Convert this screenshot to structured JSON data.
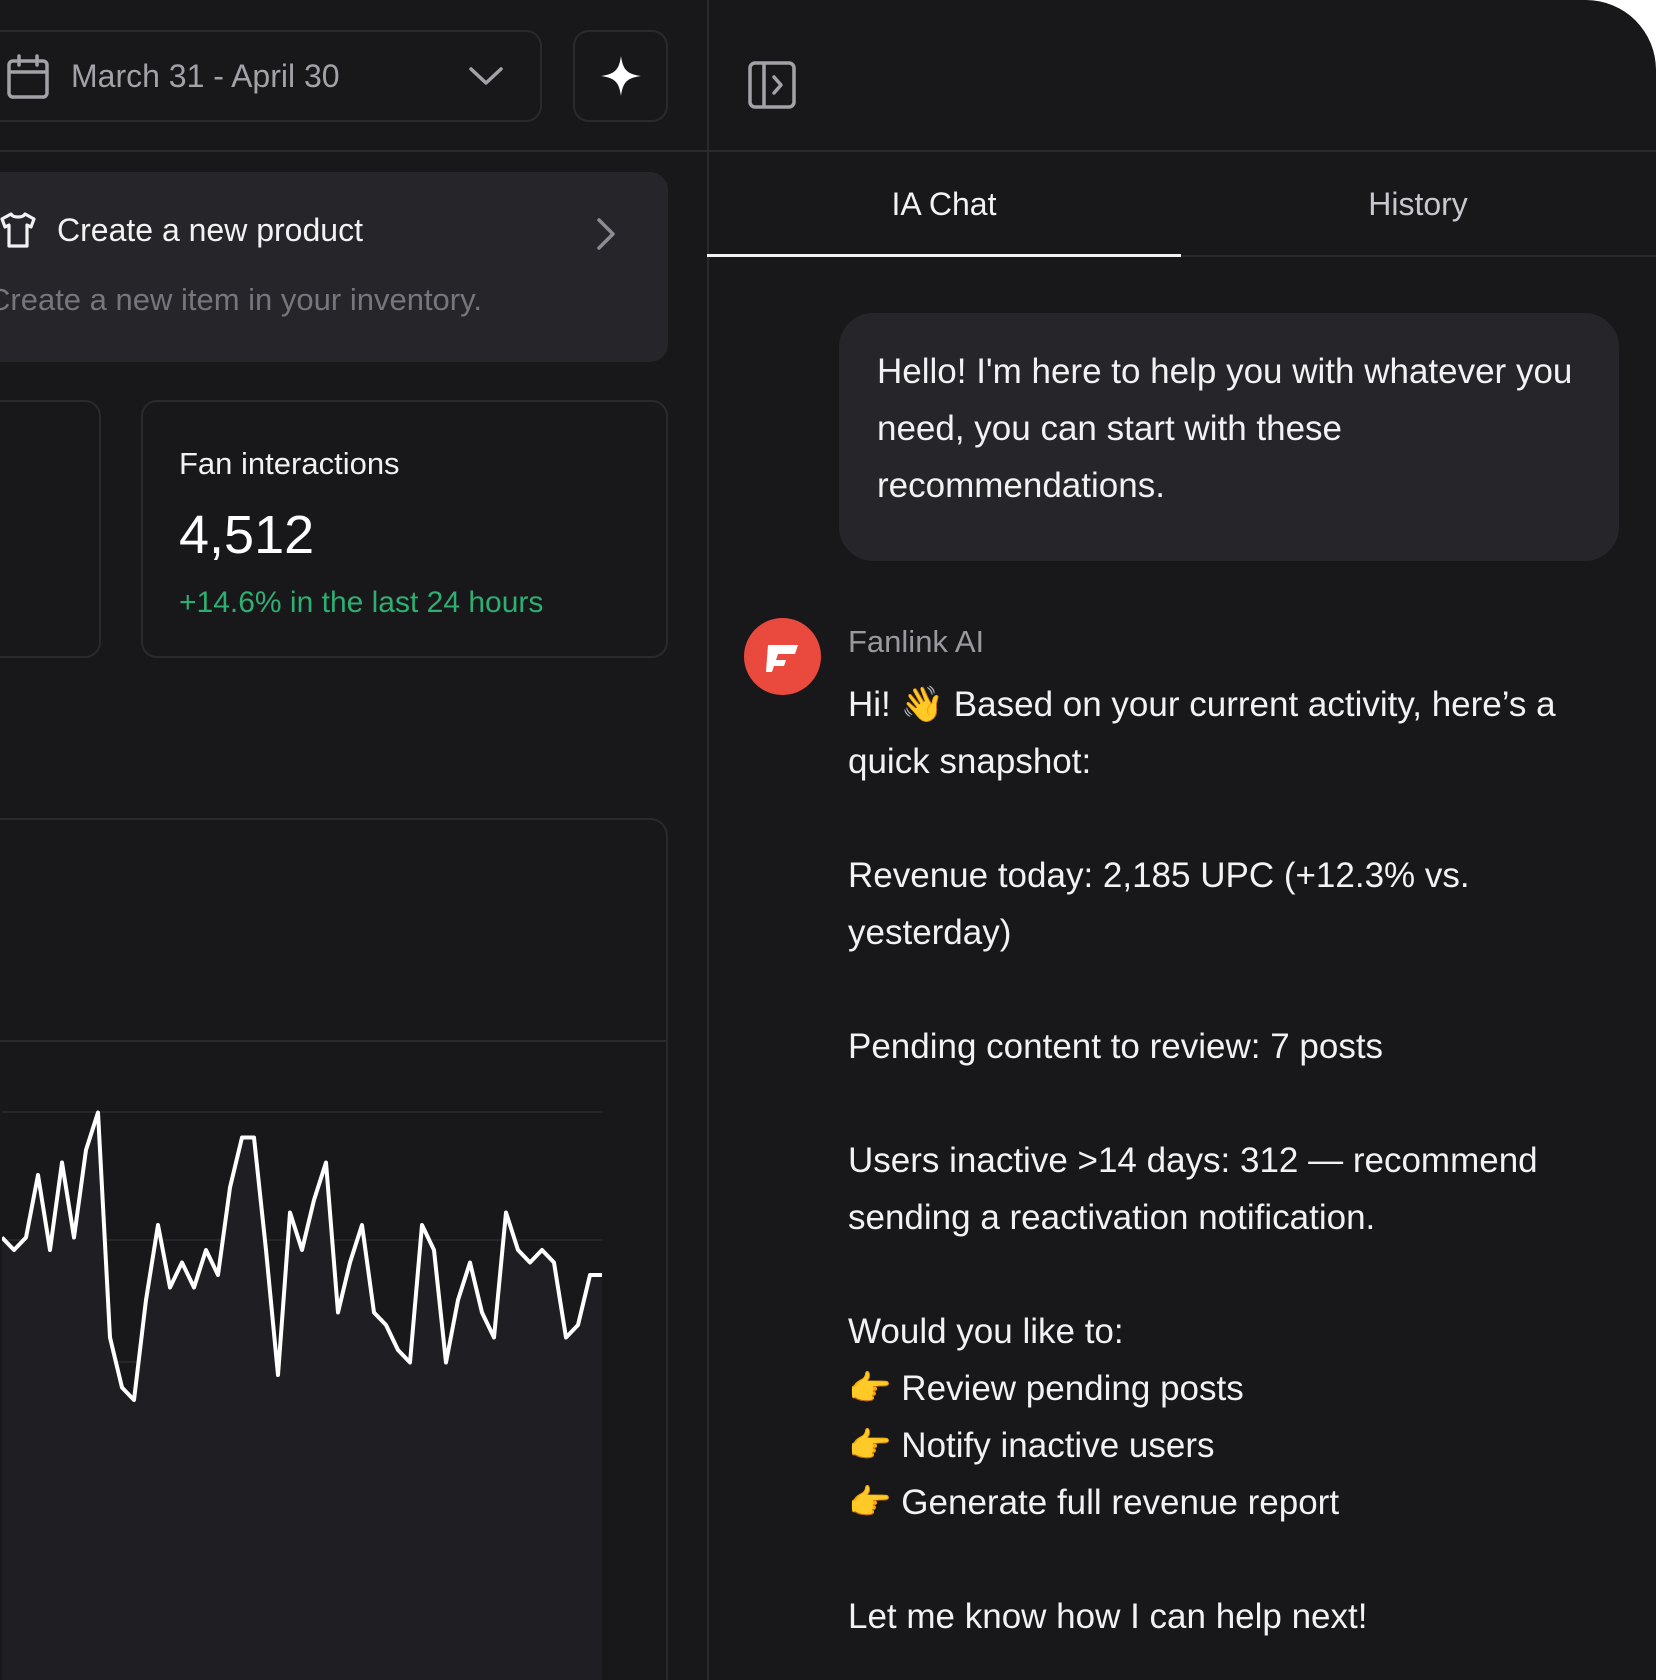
{
  "toolbar": {
    "date_range": "March 31 - April 30"
  },
  "product_card": {
    "title": "Create a new product",
    "subtitle": "Create a new item in your inventory."
  },
  "stat": {
    "label": "Fan interactions",
    "value": "4,512",
    "change": "+14.6% in the last 24 hours"
  },
  "chart_data": {
    "type": "line",
    "title": "",
    "values": [
      5,
      4,
      5,
      10,
      4,
      11,
      5,
      12,
      15,
      -3,
      -7,
      -8,
      0,
      6,
      1,
      3,
      1,
      4,
      2,
      9,
      13,
      13,
      4,
      -6,
      7,
      4,
      8,
      11,
      -1,
      3,
      6,
      -1,
      -2,
      -4,
      -5,
      6,
      4,
      -5,
      0,
      3,
      -1,
      -3,
      7,
      4,
      3,
      4,
      3,
      -3,
      -2,
      2,
      2
    ]
  },
  "chat": {
    "tabs": [
      "IA Chat",
      "History"
    ],
    "greeting": "Hello! I'm here to help you with whatever you need, you can start with these recommendations.",
    "ai_name": "Fanlink AI",
    "message": {
      "intro": "Hi! 👋 Based on your current activity, here’s a quick snapshot:",
      "revenue": "Revenue today: 2,185 UPC (+12.3% vs. yesterday)",
      "pending": "Pending content to review: 7 posts",
      "inactive": "Users inactive >14 days: 312 — recommend sending a reactivation notification.",
      "question": "Would you like to:",
      "options": [
        "👉 Review pending posts",
        "👉 Notify inactive users",
        "👉 Generate full revenue report"
      ],
      "closing": "Let me know how I can help next!"
    }
  },
  "colors": {
    "background": "#18171a",
    "card": "#262529",
    "border": "#2a292d",
    "positive": "#2fae72",
    "avatar": "#ea4a3e"
  },
  "icons": {
    "calendar": "calendar-icon",
    "chevron_down": "chevron-down-icon",
    "sparkle": "sparkle-icon",
    "shirt": "shirt-icon",
    "chevron_right": "chevron-right-icon",
    "panel_toggle": "panel-toggle-icon"
  }
}
